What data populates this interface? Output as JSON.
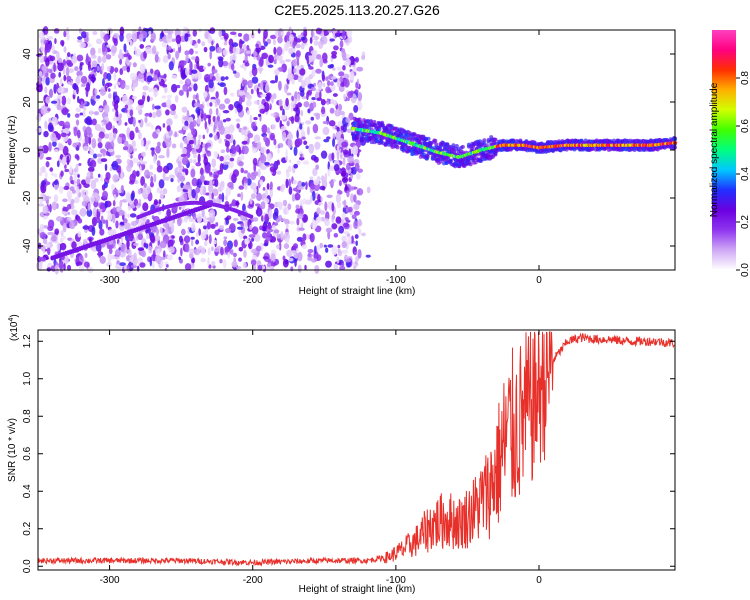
{
  "figure_title": "C2E5.2025.113.20.27.G26",
  "chart_data": [
    {
      "type": "heatmap",
      "title": "",
      "xlabel": "Height of straight line (km)",
      "ylabel": "Frequency (Hz)",
      "xlim": [
        -350,
        95
      ],
      "ylim": [
        -50,
        50
      ],
      "xticks": [
        -300,
        -200,
        -100,
        0
      ],
      "yticks": [
        -40,
        -20,
        0,
        20,
        40
      ],
      "colorbar": {
        "label": "Normalized spectral amplitude",
        "range": [
          0.0,
          1.0
        ],
        "ticks": [
          0.0,
          0.2,
          0.4,
          0.6,
          0.8
        ],
        "colors": [
          "#ffffff",
          "#cfa8f5",
          "#8f35ef",
          "#6a00e0",
          "#2030ff",
          "#00c8ff",
          "#00ff80",
          "#40ff00",
          "#d0ff00",
          "#ffb000",
          "#ff3000",
          "#ff0080",
          "#ff40c0"
        ]
      },
      "features": [
        {
          "description": "broadband noise",
          "x_range": [
            -350,
            -125
          ],
          "freq_range": [
            -50,
            50
          ],
          "amplitude": 0.15
        },
        {
          "description": "signal track",
          "points": [
            [
              -130,
              9
            ],
            [
              -110,
              7
            ],
            [
              -90,
              3
            ],
            [
              -70,
              -1
            ],
            [
              -55,
              -3
            ],
            [
              -40,
              0
            ],
            [
              -25,
              2
            ],
            [
              -10,
              2
            ],
            [
              0,
              1
            ],
            [
              20,
              2
            ],
            [
              50,
              2
            ],
            [
              80,
              2
            ],
            [
              95,
              3
            ]
          ],
          "amplitude": 0.75
        }
      ]
    },
    {
      "type": "line",
      "title": "",
      "xlabel": "Height of straight line (km)",
      "ylabel": "SNR (10 * v/v)",
      "y_multiplier": "(x10",
      "y_multiplier_exp": "4",
      "y_multiplier_close": ")",
      "xlim": [
        -350,
        95
      ],
      "ylim": [
        -0.02,
        1.26
      ],
      "xticks": [
        -300,
        -200,
        -100,
        0
      ],
      "yticks": [
        0.0,
        0.2,
        0.4,
        0.6,
        0.8,
        1.0,
        1.2
      ],
      "series": [
        {
          "color": "#e8302a",
          "x": [
            -350,
            -300,
            -250,
            -200,
            -150,
            -120,
            -105,
            -95,
            -85,
            -75,
            -65,
            -55,
            -45,
            -35,
            -28,
            -22,
            -18,
            -12,
            -6,
            0,
            10,
            20,
            30,
            40,
            50,
            60,
            70,
            80,
            95
          ],
          "y": [
            0.03,
            0.03,
            0.03,
            0.02,
            0.03,
            0.03,
            0.05,
            0.09,
            0.14,
            0.22,
            0.25,
            0.23,
            0.3,
            0.4,
            0.55,
            0.7,
            0.72,
            0.78,
            0.85,
            0.95,
            1.1,
            1.2,
            1.22,
            1.21,
            1.21,
            1.2,
            1.2,
            1.2,
            1.19
          ]
        }
      ]
    }
  ]
}
